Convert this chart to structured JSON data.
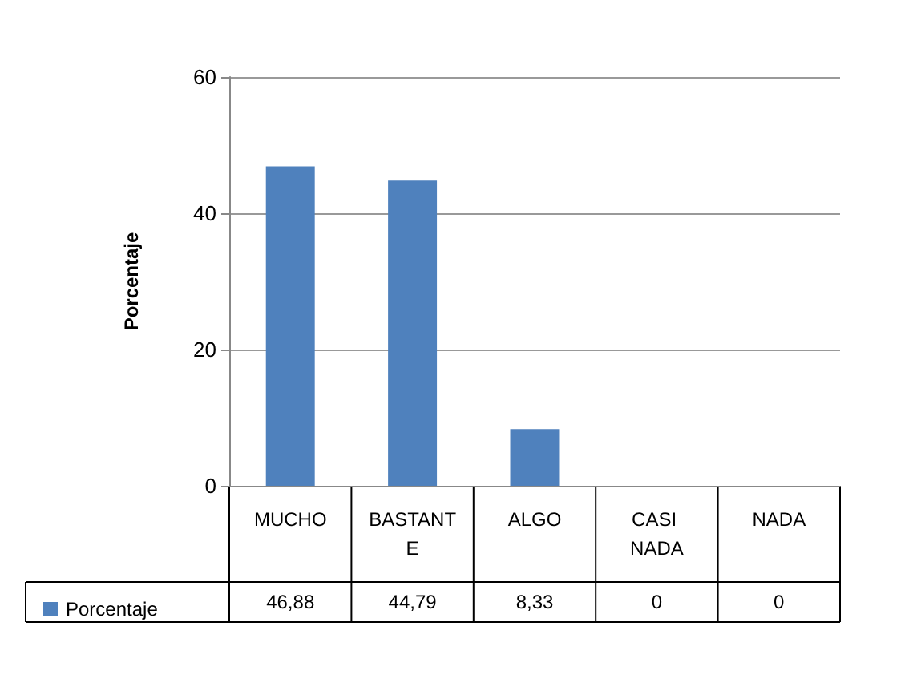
{
  "chart_data": {
    "type": "bar",
    "ylabel": "Porcentaje",
    "categories": [
      "MUCHO",
      "BASTANTE",
      "ALGO",
      "CASI NADA",
      "NADA"
    ],
    "series": [
      {
        "name": "Porcentaje",
        "color": "#4f81bd",
        "values": [
          46.88,
          44.79,
          8.33,
          0,
          0
        ],
        "value_labels": [
          "46,88",
          "44,79",
          "8,33",
          "0",
          "0"
        ]
      }
    ],
    "ylim": [
      0,
      60
    ],
    "yticks": [
      0,
      20,
      40,
      60
    ],
    "grid": "y",
    "legend": "bottom left"
  }
}
